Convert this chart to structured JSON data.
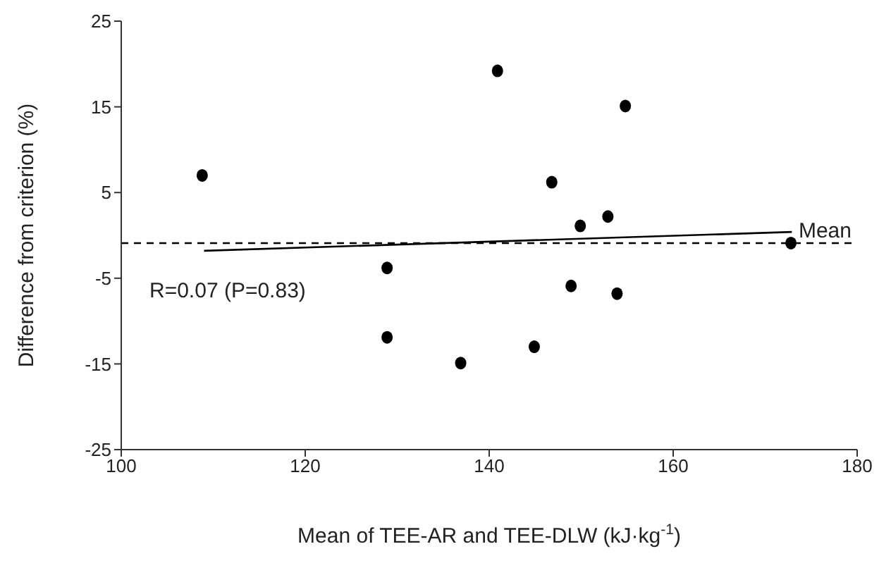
{
  "chart_data": {
    "type": "scatter",
    "xlabel": "Mean of TEE-AR and TEE-DLW (kJ·kg$^{-1}$)",
    "ylabel": "Difference from criterion (%)",
    "xlim": [
      100,
      180
    ],
    "xticks": [
      100,
      120,
      140,
      160,
      180
    ],
    "ylim": [
      -25,
      25
    ],
    "yticks": [
      -25,
      -15,
      -5,
      5,
      15,
      25
    ],
    "marker": "circle",
    "series": [
      {
        "color": "#000000",
        "x": [
          108.8,
          140.9,
          154.8,
          146.8,
          152.9,
          149.9,
          172.8,
          128.9,
          148.9,
          153.9,
          128.9,
          144.9,
          136.9
        ],
        "values": [
          7.0,
          19.2,
          15.1,
          6.2,
          2.2,
          1.1,
          -0.9,
          -3.8,
          -5.9,
          -6.8,
          -11.9,
          -13.0,
          -14.9
        ]
      },
      {
        "type": "line",
        "color": "#000000",
        "line_style": "solid",
        "marker": "none",
        "x": [
          109.0,
          172.9
        ],
        "values": [
          -1.8,
          0.4
        ]
      }
    ],
    "ref_lines": [
      {
        "axis": "y",
        "value": -0.9,
        "label": "Mean",
        "color": "#000000",
        "line_style": "dashed"
      }
    ],
    "annotations": [
      "R=0.07 (P=0.83)"
    ]
  }
}
